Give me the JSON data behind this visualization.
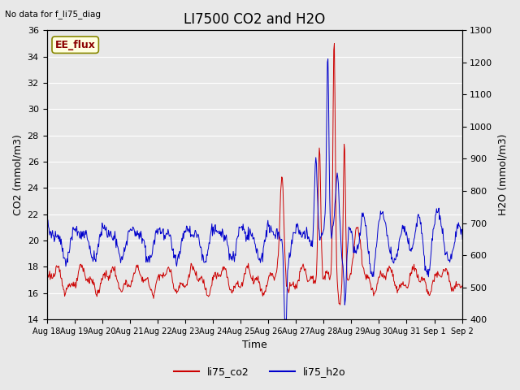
{
  "title": "LI7500 CO2 and H2O",
  "top_left_text": "No data for f_li75_diag",
  "annotation_text": "EE_flux",
  "xlabel": "Time",
  "ylabel_left": "CO2 (mmol/m3)",
  "ylabel_right": "H2O (mmol/m3)",
  "ylim_left": [
    14,
    36
  ],
  "ylim_right": [
    400,
    1300
  ],
  "yticks_left": [
    14,
    16,
    18,
    20,
    22,
    24,
    26,
    28,
    30,
    32,
    34,
    36
  ],
  "yticks_right": [
    400,
    500,
    600,
    700,
    800,
    900,
    1000,
    1100,
    1200,
    1300
  ],
  "x_tick_labels": [
    "Aug 18",
    "Aug 19",
    "Aug 20",
    "Aug 21",
    "Aug 22",
    "Aug 23",
    "Aug 24",
    "Aug 25",
    "Aug 26",
    "Aug 27",
    "Aug 28",
    "Aug 29",
    "Aug 30",
    "Aug 31",
    "Sep 1",
    "Sep 2"
  ],
  "co2_color": "#cc0000",
  "h2o_color": "#0000cc",
  "fig_bg_color": "#e8e8e8",
  "plot_bg_color": "#e8e8e8",
  "legend_co2": "li75_co2",
  "legend_h2o": "li75_h2o",
  "title_fontsize": 12,
  "axis_label_fontsize": 9,
  "tick_fontsize": 8,
  "annotation_fontsize": 9,
  "n_days": 16,
  "pts_per_day": 48
}
